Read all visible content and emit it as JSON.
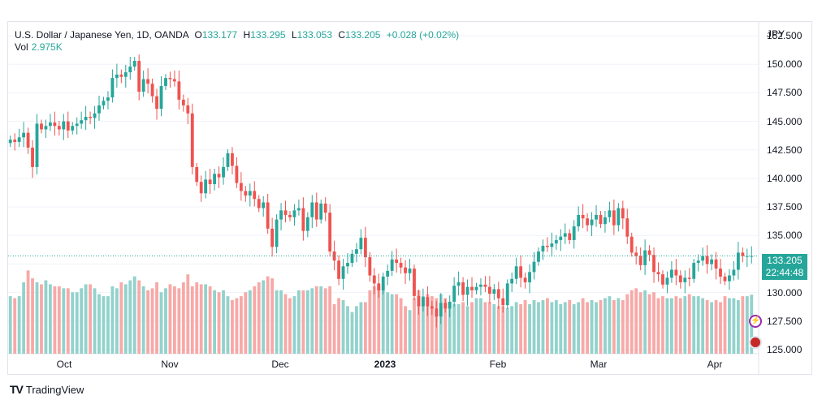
{
  "header": {
    "symbol": "U.S. Dollar / Japanese Yen, 1D, OANDA",
    "o_label": "O",
    "o_value": "133.177",
    "h_label": "H",
    "h_value": "133.295",
    "l_label": "L",
    "l_value": "133.053",
    "c_label": "C",
    "c_value": "133.205",
    "change": "+0.028 (+0.02%)",
    "vol_label": "Vol",
    "vol_value": "2.975K"
  },
  "price_axis": {
    "currency": "JPY",
    "ticks": [
      "152.500",
      "150.000",
      "147.500",
      "145.000",
      "142.500",
      "140.000",
      "137.500",
      "135.000",
      "132.500",
      "130.000",
      "127.500",
      "125.000"
    ],
    "last_price": "133.205",
    "countdown": "22:44:48"
  },
  "time_axis": {
    "labels": [
      {
        "text": "Oct",
        "bold": false
      },
      {
        "text": "Nov",
        "bold": false
      },
      {
        "text": "Dec",
        "bold": false
      },
      {
        "text": "2023",
        "bold": true
      },
      {
        "text": "Feb",
        "bold": false
      },
      {
        "text": "Mar",
        "bold": false
      },
      {
        "text": "Apr",
        "bold": false
      }
    ]
  },
  "branding": {
    "name": "TradingView",
    "logo": "TV"
  },
  "colors": {
    "up": "#26a69a",
    "down": "#ef5350",
    "up_vol": "#92d2cc",
    "down_vol": "#f7a9a7",
    "grid": "#f0f3fa"
  },
  "chart_data": {
    "type": "candlestick",
    "ylim": [
      125.0,
      153.5
    ],
    "price_ticks": [
      152.5,
      150.0,
      147.5,
      145.0,
      142.5,
      140.0,
      137.5,
      135.0,
      132.5,
      130.0,
      127.5,
      125.0
    ],
    "last_price": 133.205,
    "closes": [
      143.4,
      143.2,
      143.6,
      144.0,
      142.7,
      141.0,
      144.8,
      144.3,
      144.6,
      144.9,
      144.6,
      144.3,
      145.0,
      144.2,
      144.6,
      144.8,
      145.1,
      145.4,
      145.3,
      145.7,
      146.4,
      146.8,
      147.1,
      148.8,
      149.1,
      148.9,
      149.3,
      149.8,
      150.3,
      147.6,
      148.7,
      148.3,
      147.2,
      146.1,
      148.1,
      148.8,
      148.7,
      148.5,
      146.9,
      146.4,
      145.7,
      141.0,
      139.7,
      138.7,
      139.9,
      139.5,
      140.4,
      140.1,
      141.0,
      142.2,
      141.1,
      139.6,
      138.9,
      138.5,
      138.9,
      138.2,
      137.4,
      137.9,
      135.6,
      134.0,
      136.4,
      137.2,
      136.8,
      136.6,
      137.2,
      137.4,
      135.4,
      136.6,
      137.9,
      136.4,
      137.8,
      137.0,
      133.6,
      132.8,
      131.2,
      132.3,
      132.6,
      133.4,
      133.8,
      134.8,
      133.1,
      131.5,
      130.8,
      130.2,
      131.4,
      131.9,
      132.9,
      132.6,
      132.2,
      131.7,
      132.1,
      129.7,
      128.8,
      129.6,
      128.8,
      128.6,
      127.9,
      129.1,
      128.6,
      129.2,
      130.6,
      130.9,
      129.8,
      130.5,
      130.2,
      130.5,
      130.7,
      130.5,
      129.9,
      130.3,
      129.5,
      128.9,
      130.8,
      131.2,
      132.3,
      131.3,
      130.9,
      131.8,
      132.7,
      133.6,
      134.1,
      134.0,
      134.3,
      134.6,
      134.9,
      135.2,
      134.6,
      135.8,
      136.8,
      136.5,
      135.9,
      136.4,
      136.8,
      136.0,
      136.6,
      137.2,
      135.9,
      137.4,
      136.5,
      134.9,
      133.5,
      133.2,
      132.4,
      133.7,
      133.3,
      131.8,
      131.6,
      130.7,
      131.3,
      132.0,
      131.5,
      130.9,
      131.3,
      131.2,
      132.6,
      132.8,
      133.2,
      132.5,
      132.9,
      132.1,
      131.4,
      131.0,
      131.5,
      132.0,
      133.5,
      133.2,
      133.2,
      133.205
    ],
    "volumes": [
      2.9,
      2.8,
      2.9,
      3.6,
      4.2,
      3.8,
      3.6,
      3.5,
      3.7,
      3.5,
      3.4,
      3.4,
      3.3,
      3.3,
      3.1,
      3.1,
      3.3,
      3.5,
      3.5,
      3.3,
      3.0,
      2.9,
      2.9,
      3.4,
      3.3,
      3.6,
      3.5,
      3.7,
      3.9,
      3.7,
      3.4,
      3.2,
      3.3,
      3.6,
      3.1,
      3.3,
      3.5,
      3.4,
      3.3,
      3.6,
      4.0,
      3.4,
      3.6,
      3.5,
      3.5,
      3.4,
      3.2,
      3.1,
      3.2,
      2.9,
      2.7,
      2.8,
      2.9,
      3.1,
      3.2,
      3.4,
      3.6,
      3.7,
      3.9,
      3.8,
      3.2,
      3.2,
      3.0,
      2.8,
      2.9,
      3.2,
      3.2,
      3.2,
      3.3,
      3.4,
      3.4,
      3.3,
      3.4,
      2.5,
      2.8,
      2.7,
      2.4,
      2.1,
      2.4,
      2.6,
      2.6,
      3.2,
      3.4,
      3.4,
      3.4,
      3.1,
      3.0,
      3.0,
      2.8,
      2.4,
      2.2,
      2.8,
      3.2,
      2.9,
      3.0,
      2.9,
      2.8,
      3.0,
      2.8,
      2.6,
      2.5,
      2.5,
      2.6,
      2.4,
      2.6,
      2.8,
      2.8,
      2.6,
      2.6,
      2.5,
      2.4,
      2.4,
      2.3,
      2.4,
      2.6,
      2.5,
      2.7,
      2.5,
      2.7,
      2.6,
      2.7,
      2.8,
      2.6,
      2.7,
      2.5,
      2.6,
      2.7,
      2.5,
      2.6,
      2.8,
      2.6,
      2.7,
      2.6,
      2.7,
      2.8,
      2.9,
      2.7,
      2.8,
      2.7,
      3.0,
      3.2,
      3.3,
      3.1,
      3.2,
      3.0,
      3.1,
      2.8,
      2.9,
      2.8,
      2.8,
      2.9,
      2.8,
      2.9,
      3.0,
      2.9,
      2.9,
      2.8,
      2.7,
      2.6,
      2.7,
      2.6,
      2.9,
      2.8,
      2.8,
      2.7,
      2.9,
      2.9,
      2.975
    ]
  }
}
